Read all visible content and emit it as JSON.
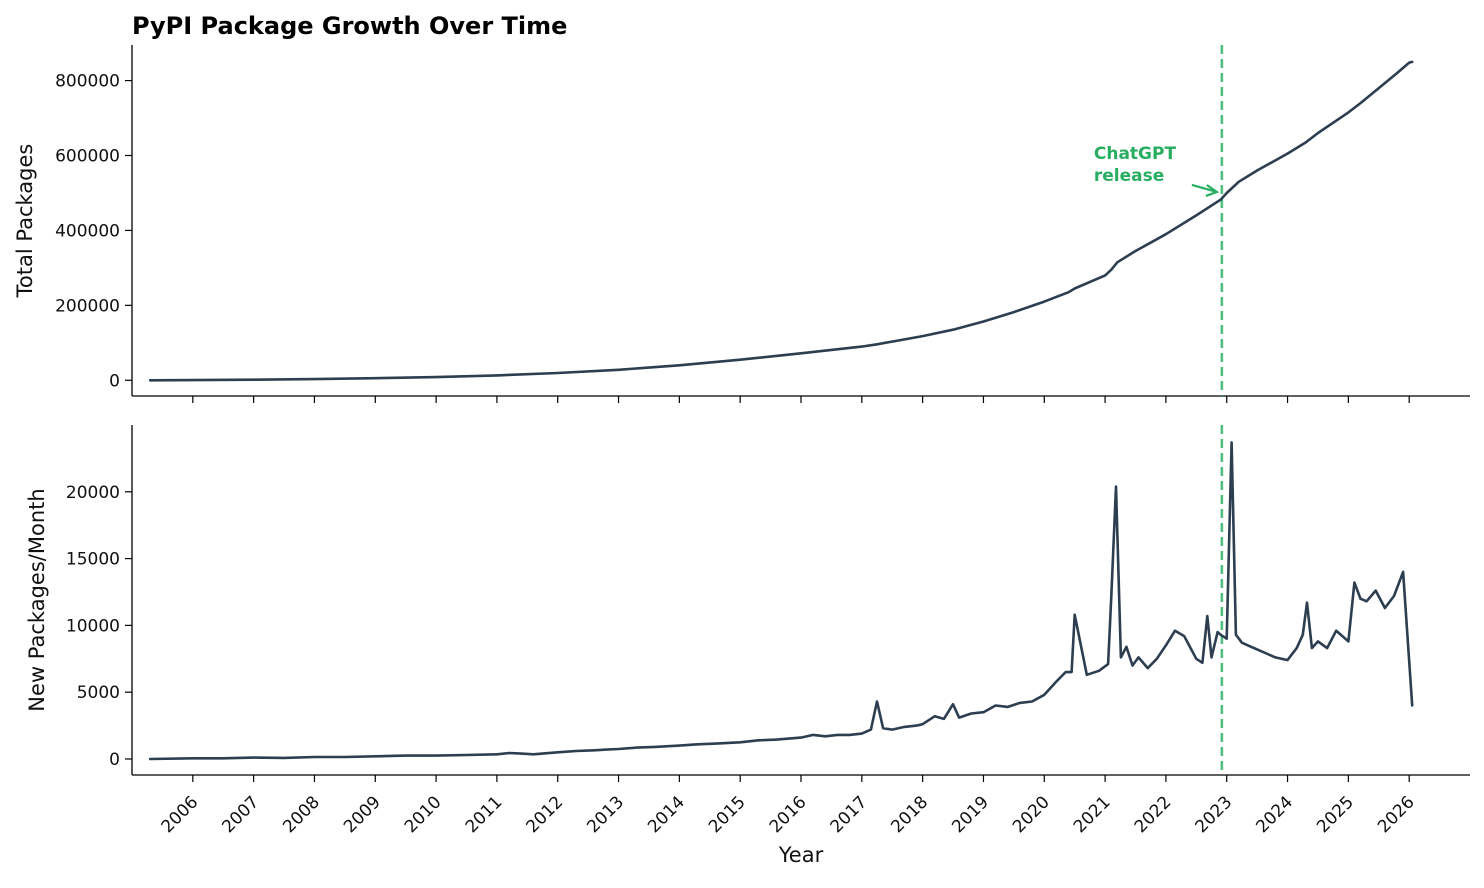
{
  "chart_data": [
    {
      "id": "total",
      "type": "line",
      "title": "PyPI Package Growth Over Time",
      "xlabel": "",
      "ylabel": "Total Packages",
      "xlim": [
        2005.0,
        2027.0
      ],
      "ylim": [
        -42000,
        895000
      ],
      "yticks": [
        0,
        200000,
        400000,
        600000,
        800000
      ],
      "grid": false,
      "line_color": "#2c3e50",
      "series": [
        {
          "x": [
            2005.3,
            2006.0,
            2007.0,
            2008.0,
            2009.0,
            2010.0,
            2011.0,
            2012.0,
            2013.0,
            2014.0,
            2015.0,
            2016.0,
            2017.0,
            2017.25,
            2018.0,
            2018.5,
            2019.0,
            2019.5,
            2020.0,
            2020.4,
            2020.5,
            2021.0,
            2021.1,
            2021.2,
            2021.5,
            2022.0,
            2022.5,
            2022.9,
            2023.0,
            2023.2,
            2023.5,
            2024.0,
            2024.3,
            2024.5,
            2025.0,
            2025.2,
            2025.5,
            2025.8,
            2026.0,
            2026.05
          ],
          "y": [
            0,
            500,
            1500,
            3000,
            5500,
            8500,
            13000,
            19500,
            28000,
            40000,
            55000,
            72000,
            90000,
            96000,
            118000,
            135000,
            157000,
            182000,
            210000,
            235000,
            245000,
            280000,
            295000,
            315000,
            345000,
            390000,
            440000,
            482000,
            500000,
            530000,
            560000,
            605000,
            635000,
            660000,
            715000,
            740000,
            780000,
            820000,
            848000,
            850000
          ]
        }
      ],
      "annotations": [
        {
          "text": "ChatGPT release",
          "lines": [
            "ChatGPT",
            "release"
          ],
          "x": 2022.92,
          "y": 500000,
          "color": "#27ae60"
        }
      ],
      "vline": {
        "x": 2022.92,
        "color": "#27ae60",
        "style": "dashed"
      }
    },
    {
      "id": "monthly",
      "type": "line",
      "title": "",
      "xlabel": "Year",
      "ylabel": "New Packages/Month",
      "xlim": [
        2005.0,
        2027.0
      ],
      "ylim": [
        -1200,
        25000
      ],
      "yticks": [
        0,
        5000,
        10000,
        15000,
        20000
      ],
      "xticks": [
        2006,
        2007,
        2008,
        2009,
        2010,
        2011,
        2012,
        2013,
        2014,
        2015,
        2016,
        2017,
        2018,
        2019,
        2020,
        2021,
        2022,
        2023,
        2024,
        2025,
        2026
      ],
      "xtick_labels": [
        "2006",
        "2007",
        "2008",
        "2009",
        "2010",
        "2011",
        "2012",
        "2013",
        "2014",
        "2015",
        "2016",
        "2017",
        "2018",
        "2019",
        "2020",
        "2021",
        "2022",
        "2023",
        "2024",
        "2025",
        "2026"
      ],
      "grid": false,
      "line_color": "#2c3e50",
      "series": [
        {
          "x": [
            2005.3,
            2006.0,
            2006.5,
            2007.0,
            2007.5,
            2008.0,
            2008.5,
            2009.0,
            2009.5,
            2010.0,
            2010.5,
            2011.0,
            2011.2,
            2011.4,
            2011.6,
            2012.0,
            2012.3,
            2012.6,
            2012.8,
            2013.0,
            2013.3,
            2013.6,
            2014.0,
            2014.3,
            2014.6,
            2015.0,
            2015.3,
            2015.6,
            2016.0,
            2016.2,
            2016.4,
            2016.6,
            2016.8,
            2017.0,
            2017.15,
            2017.25,
            2017.35,
            2017.5,
            2017.7,
            2017.9,
            2018.0,
            2018.2,
            2018.35,
            2018.5,
            2018.6,
            2018.8,
            2019.0,
            2019.2,
            2019.4,
            2019.6,
            2019.8,
            2020.0,
            2020.2,
            2020.35,
            2020.45,
            2020.5,
            2020.7,
            2020.9,
            2021.05,
            2021.1,
            2021.18,
            2021.26,
            2021.35,
            2021.45,
            2021.55,
            2021.7,
            2021.85,
            2022.0,
            2022.15,
            2022.3,
            2022.5,
            2022.6,
            2022.68,
            2022.75,
            2022.85,
            2022.9,
            2023.0,
            2023.08,
            2023.15,
            2023.25,
            2023.4,
            2023.6,
            2023.8,
            2024.0,
            2024.15,
            2024.25,
            2024.32,
            2024.4,
            2024.5,
            2024.65,
            2024.8,
            2025.0,
            2025.1,
            2025.2,
            2025.3,
            2025.45,
            2025.6,
            2025.75,
            2025.9,
            2026.05
          ],
          "y": [
            0,
            50,
            50,
            100,
            80,
            150,
            150,
            200,
            250,
            250,
            300,
            350,
            450,
            400,
            350,
            500,
            600,
            650,
            700,
            750,
            850,
            900,
            1000,
            1100,
            1150,
            1250,
            1400,
            1450,
            1600,
            1800,
            1700,
            1800,
            1800,
            1900,
            2200,
            4300,
            2300,
            2200,
            2400,
            2500,
            2600,
            3200,
            3000,
            4100,
            3100,
            3400,
            3500,
            4000,
            3900,
            4200,
            4300,
            4800,
            5800,
            6500,
            6500,
            10800,
            6300,
            6600,
            7100,
            12000,
            20400,
            7600,
            8400,
            7000,
            7600,
            6800,
            7500,
            8500,
            9600,
            9200,
            7500,
            7200,
            10700,
            7600,
            9500,
            9300,
            9000,
            23700,
            9300,
            8700,
            8400,
            8000,
            7600,
            7400,
            8300,
            9300,
            11700,
            8300,
            8800,
            8300,
            9600,
            8800,
            13200,
            12000,
            11800,
            12600,
            11300,
            12200,
            14000,
            4000
          ]
        }
      ],
      "vline": {
        "x": 2022.92,
        "color": "#27ae60",
        "style": "dashed"
      }
    }
  ]
}
